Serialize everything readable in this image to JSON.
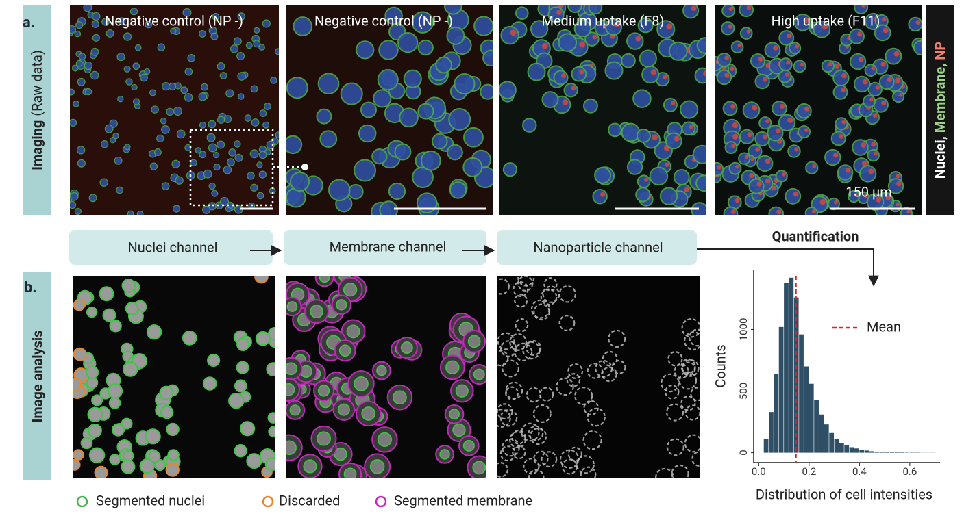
{
  "panel_a": {
    "label": "a.",
    "side_label": {
      "bold": "Imaging",
      "rest": "(Raw data)"
    },
    "images": [
      {
        "title": "Negative control (NP -)"
      },
      {
        "title": "Negative control (NP -)"
      },
      {
        "title": "Medium uptake (F8)"
      },
      {
        "title": "High uptake (F11)"
      }
    ],
    "scale_bar": "150 µm",
    "channels": [
      "Nuclei,",
      "Membrane,",
      "NP"
    ]
  },
  "flow": {
    "steps": [
      "Nuclei channel",
      "Membrane channel",
      "Nanoparticle channel"
    ],
    "quantification": "Quantification"
  },
  "panel_b": {
    "label": "b.",
    "side_label": "Image analysis",
    "legend": [
      "Segmented nuclei",
      "Discarded",
      "Segmented membrane"
    ]
  },
  "chart_data": {
    "type": "histogram",
    "bins": [
      0.02,
      0.04,
      0.06,
      0.08,
      0.1,
      0.12,
      0.14,
      0.16,
      0.18,
      0.2,
      0.22,
      0.24,
      0.26,
      0.28,
      0.3,
      0.32,
      0.34,
      0.36,
      0.38,
      0.4,
      0.42,
      0.44,
      0.46,
      0.48,
      0.5,
      0.52,
      0.54,
      0.56,
      0.58,
      0.6,
      0.62,
      0.64,
      0.66,
      0.68,
      0.7
    ],
    "values": [
      110,
      330,
      640,
      1020,
      1380,
      1420,
      1260,
      960,
      700,
      560,
      430,
      310,
      230,
      160,
      110,
      80,
      60,
      45,
      35,
      25,
      18,
      12,
      8,
      6,
      5,
      4,
      3,
      3,
      2,
      2,
      2,
      1,
      1,
      1
    ],
    "color": "#2e4f66",
    "xlim": [
      -0.02,
      0.72
    ],
    "ylim": [
      -80,
      1480
    ],
    "xticks": [
      {
        "value": 0,
        "label": "0.0"
      },
      0.2,
      0.4,
      0.6
    ],
    "yticks": [
      0,
      500,
      1000
    ],
    "xlabel": "Distribution of cell intensities",
    "ylabel": "Counts",
    "mean": {
      "name": "Mean",
      "value": 0.148,
      "color": "#d62728"
    }
  }
}
